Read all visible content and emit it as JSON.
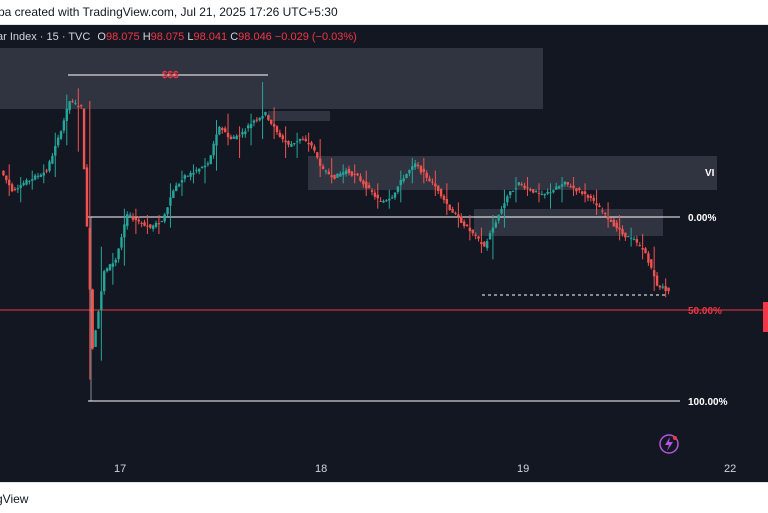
{
  "header": {
    "published_text": "pa created with TradingView.com, Jul 21, 2025 17:26 UTC+5:30"
  },
  "legend": {
    "symbol": "ar Index · 15 · TVC",
    "open_key": "O",
    "open": "98.075",
    "high_key": "H",
    "high": "98.075",
    "low_key": "L",
    "low": "98.041",
    "close_key": "C",
    "close": "98.046",
    "change": "−0.029 (−0.03%)"
  },
  "footer": {
    "brand": "gView"
  },
  "colors": {
    "bg": "#131722",
    "up": "#26a69a",
    "down": "#ef5350",
    "zone": "#363a45",
    "fib": "#ffffff",
    "fib50": "#f23645"
  },
  "icons": {
    "replay": "lightning-icon"
  },
  "chart_data": {
    "type": "candlestick",
    "title": "",
    "x_ticks": [
      "17",
      "18",
      "19",
      "22"
    ],
    "annotations": [
      {
        "kind": "label",
        "text": "$$$"
      },
      {
        "kind": "label",
        "text": "VI"
      }
    ],
    "fib_levels": [
      {
        "label": "0.00%",
        "price": 98.34
      },
      {
        "label": "50.00%",
        "price": 98.21
      },
      {
        "label": "100.00%",
        "price": 98.08
      }
    ],
    "last_price": 98.046,
    "ylim": [
      98.0,
      98.6
    ],
    "series": [
      {
        "type": "ohlc",
        "keypoints": [
          [
            98.4,
            98.41,
            98.36,
            98.37
          ],
          [
            98.37,
            98.39,
            98.35,
            98.38
          ],
          [
            98.38,
            98.4,
            98.37,
            98.39
          ],
          [
            98.39,
            98.41,
            98.38,
            98.4
          ],
          [
            98.4,
            98.46,
            98.39,
            98.45
          ],
          [
            98.45,
            98.52,
            98.44,
            98.51
          ],
          [
            98.51,
            98.53,
            98.43,
            98.5
          ],
          [
            98.5,
            98.51,
            98.07,
            98.12
          ],
          [
            98.12,
            98.28,
            98.1,
            98.24
          ],
          [
            98.24,
            98.27,
            98.22,
            98.26
          ],
          [
            98.26,
            98.34,
            98.25,
            98.33
          ],
          [
            98.33,
            98.34,
            98.3,
            98.32
          ],
          [
            98.32,
            98.33,
            98.3,
            98.31
          ],
          [
            98.31,
            98.33,
            98.3,
            98.32
          ],
          [
            98.32,
            98.38,
            98.31,
            98.37
          ],
          [
            98.37,
            98.4,
            98.36,
            98.39
          ],
          [
            98.39,
            98.41,
            98.38,
            98.4
          ],
          [
            98.4,
            98.42,
            98.38,
            98.41
          ],
          [
            98.41,
            98.48,
            98.4,
            98.47
          ],
          [
            98.47,
            98.49,
            98.44,
            98.45
          ],
          [
            98.45,
            98.47,
            98.42,
            98.46
          ],
          [
            98.46,
            98.49,
            98.44,
            98.48
          ],
          [
            98.48,
            98.54,
            98.45,
            98.49
          ],
          [
            98.49,
            98.5,
            98.45,
            98.46
          ],
          [
            98.46,
            98.47,
            98.42,
            98.44
          ],
          [
            98.44,
            98.46,
            98.42,
            98.45
          ],
          [
            98.45,
            98.46,
            98.43,
            98.44
          ],
          [
            98.44,
            98.45,
            98.39,
            98.4
          ],
          [
            98.4,
            98.42,
            98.38,
            98.39
          ],
          [
            98.39,
            98.41,
            98.38,
            98.4
          ],
          [
            98.4,
            98.41,
            98.38,
            98.39
          ],
          [
            98.39,
            98.4,
            98.36,
            98.37
          ],
          [
            98.37,
            98.38,
            98.34,
            98.35
          ],
          [
            98.35,
            98.37,
            98.34,
            98.36
          ],
          [
            98.36,
            98.4,
            98.35,
            98.39
          ],
          [
            98.39,
            98.42,
            98.38,
            98.41
          ],
          [
            98.41,
            98.42,
            98.38,
            98.39
          ],
          [
            98.39,
            98.4,
            98.36,
            98.37
          ],
          [
            98.37,
            98.38,
            98.33,
            98.34
          ],
          [
            98.34,
            98.35,
            98.31,
            98.32
          ],
          [
            98.32,
            98.33,
            98.29,
            98.3
          ],
          [
            98.3,
            98.31,
            98.27,
            98.28
          ],
          [
            98.28,
            98.33,
            98.26,
            98.32
          ],
          [
            98.32,
            98.37,
            98.31,
            98.36
          ],
          [
            98.36,
            98.39,
            98.35,
            98.38
          ],
          [
            98.38,
            98.39,
            98.36,
            98.37
          ],
          [
            98.37,
            98.38,
            98.35,
            98.36
          ],
          [
            98.36,
            98.38,
            98.34,
            98.37
          ],
          [
            98.37,
            98.39,
            98.35,
            98.38
          ],
          [
            98.38,
            98.39,
            98.36,
            98.37
          ],
          [
            98.37,
            98.38,
            98.35,
            98.36
          ],
          [
            98.36,
            98.37,
            98.33,
            98.34
          ],
          [
            98.34,
            98.35,
            98.31,
            98.32
          ],
          [
            98.32,
            98.33,
            98.29,
            98.3
          ],
          [
            98.3,
            98.31,
            98.28,
            98.29
          ],
          [
            98.29,
            98.3,
            98.26,
            98.27
          ],
          [
            98.27,
            98.28,
            98.21,
            98.22
          ],
          [
            98.22,
            98.23,
            98.2,
            98.21
          ]
        ]
      }
    ]
  }
}
